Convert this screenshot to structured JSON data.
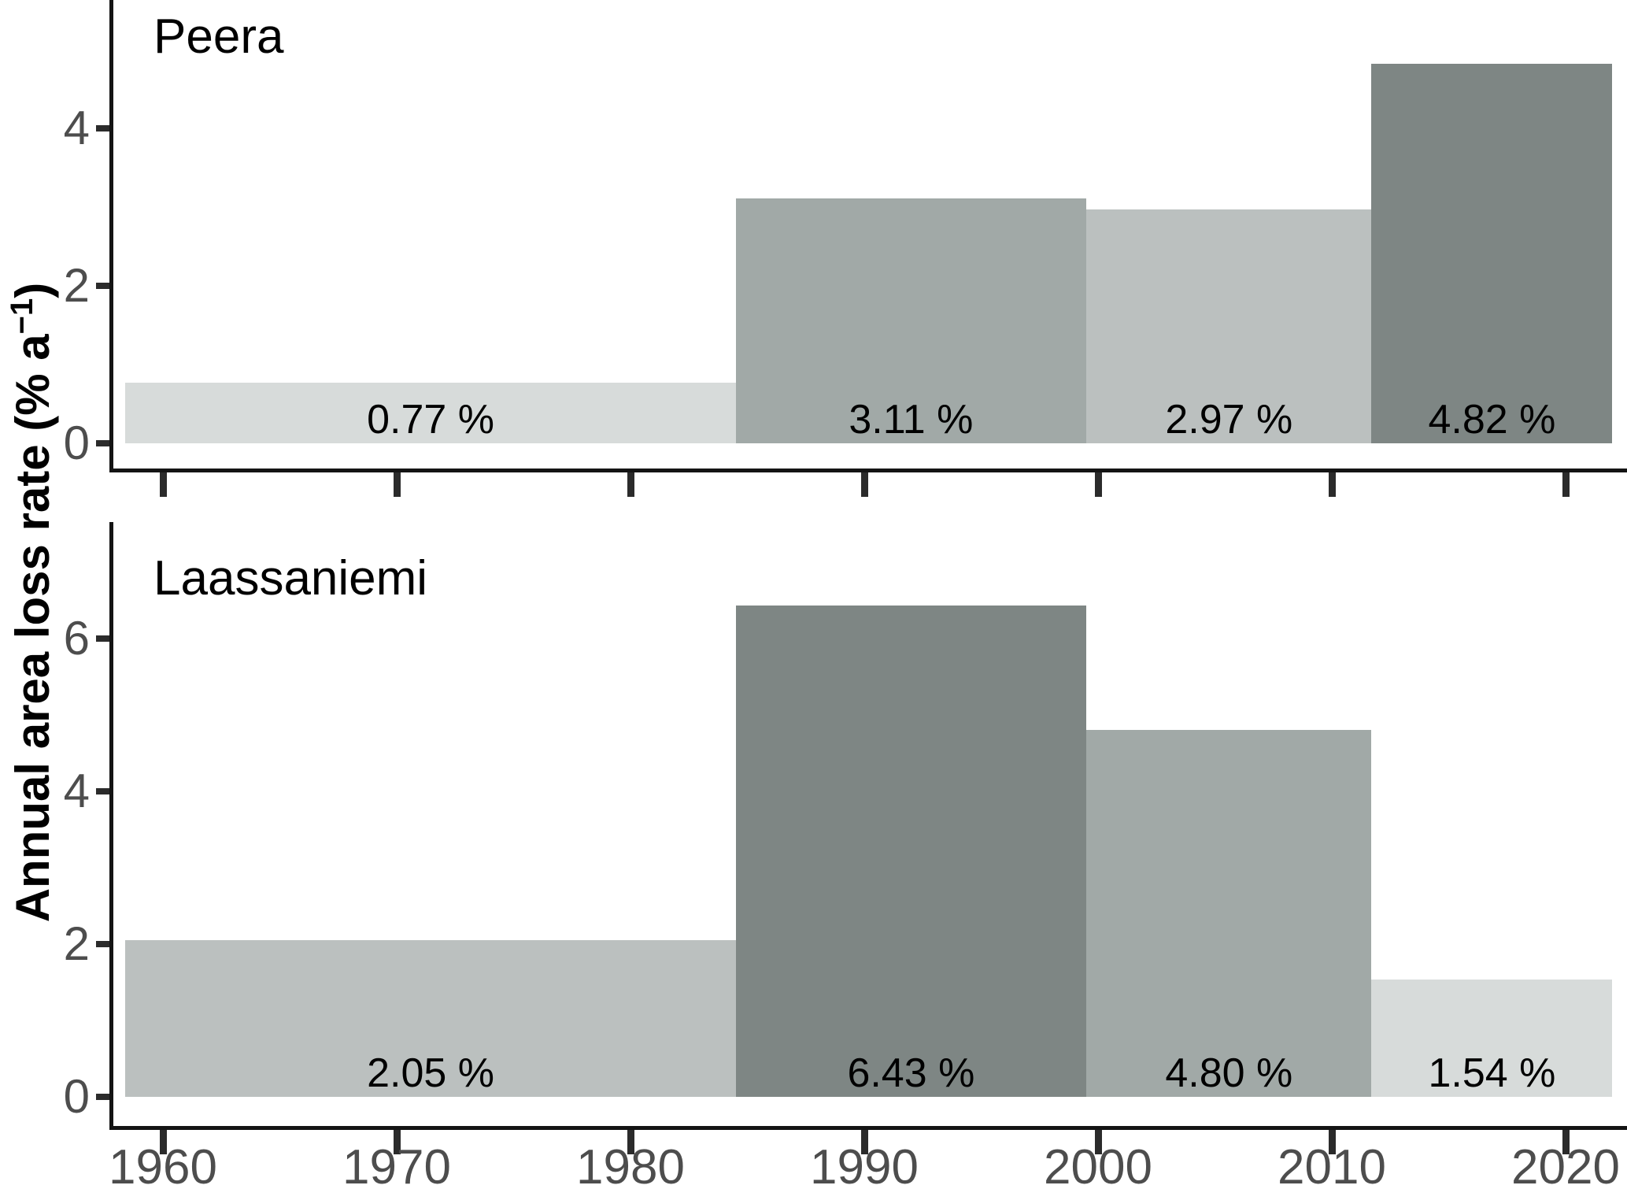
{
  "chart_data": {
    "type": "bar",
    "ylabel": "Annual area loss rate (% a",
    "ylabel_superscript": "−1",
    "ylabel_close": ")",
    "x_axis": {
      "ticks": [
        1960,
        1970,
        1980,
        1990,
        2000,
        2010,
        2020
      ],
      "tick_labels": [
        "1960",
        "1970",
        "1980",
        "1990",
        "2000",
        "2010",
        "2020"
      ],
      "range_years": [
        1957.8,
        2022.6
      ]
    },
    "grid": "off",
    "legend": "none",
    "colors": {
      "axis_line": "#141414",
      "tick_mark": "#2b2b2b",
      "tick_text": "#4d4d4d",
      "bar_label_text": "#000000",
      "palette_light_to_dark": [
        "#d7dbda",
        "#bbc0bf",
        "#a1a9a7",
        "#7e8684"
      ]
    },
    "panels": [
      {
        "title": "Peera",
        "ylim": [
          0,
          5.95
        ],
        "yticks": [
          0,
          2,
          4
        ],
        "ytick_labels": [
          "0",
          "2",
          "4"
        ],
        "segments": [
          {
            "start": 1958.4,
            "end": 1984.5,
            "value": 0.77,
            "label": "0.77 %",
            "color": "#d7dbda"
          },
          {
            "start": 1984.5,
            "end": 1999.5,
            "value": 3.11,
            "label": "3.11 %",
            "color": "#a1a9a7"
          },
          {
            "start": 1999.5,
            "end": 2011.7,
            "value": 2.97,
            "label": "2.97 %",
            "color": "#bbc0bf"
          },
          {
            "start": 2011.7,
            "end": 2022.0,
            "value": 4.82,
            "label": "4.82 %",
            "color": "#7e8684"
          }
        ]
      },
      {
        "title": "Laassaniemi",
        "ylim": [
          0,
          7.9
        ],
        "yticks": [
          0,
          2,
          4,
          6
        ],
        "ytick_labels": [
          "0",
          "2",
          "4",
          "6"
        ],
        "segments": [
          {
            "start": 1958.4,
            "end": 1984.5,
            "value": 2.05,
            "label": "2.05 %",
            "color": "#bbc0bf"
          },
          {
            "start": 1984.5,
            "end": 1999.5,
            "value": 6.43,
            "label": "6.43 %",
            "color": "#7e8684"
          },
          {
            "start": 1999.5,
            "end": 2011.7,
            "value": 4.8,
            "label": "4.80 %",
            "color": "#a1a9a7"
          },
          {
            "start": 2011.7,
            "end": 2022.0,
            "value": 1.54,
            "label": "1.54 %",
            "color": "#d7dbda"
          }
        ]
      }
    ]
  }
}
